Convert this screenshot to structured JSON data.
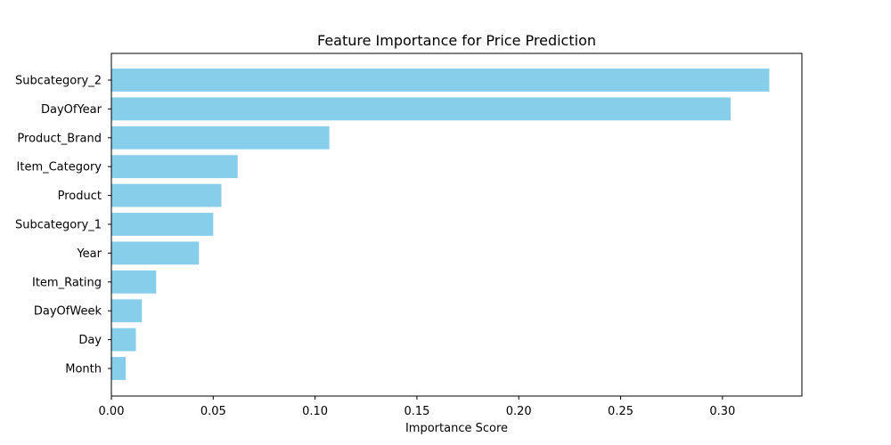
{
  "chart_data": {
    "type": "bar",
    "orientation": "horizontal",
    "title": "Feature Importance for Price Prediction",
    "xlabel": "Importance Score",
    "ylabel": "",
    "categories": [
      "Subcategory_2",
      "DayOfYear",
      "Product_Brand",
      "Item_Category",
      "Product",
      "Subcategory_1",
      "Year",
      "Item_Rating",
      "DayOfWeek",
      "Day",
      "Month"
    ],
    "values": [
      0.323,
      0.304,
      0.107,
      0.062,
      0.054,
      0.05,
      0.043,
      0.022,
      0.015,
      0.012,
      0.007
    ],
    "xlim": [
      0,
      0.339
    ],
    "xticks": [
      0.0,
      0.05,
      0.1,
      0.15,
      0.2,
      0.25,
      0.3
    ],
    "xtick_labels": [
      "0.00",
      "0.05",
      "0.10",
      "0.15",
      "0.20",
      "0.25",
      "0.30"
    ],
    "grid": false,
    "legend": "none",
    "bar_color": "#87CEEB"
  }
}
